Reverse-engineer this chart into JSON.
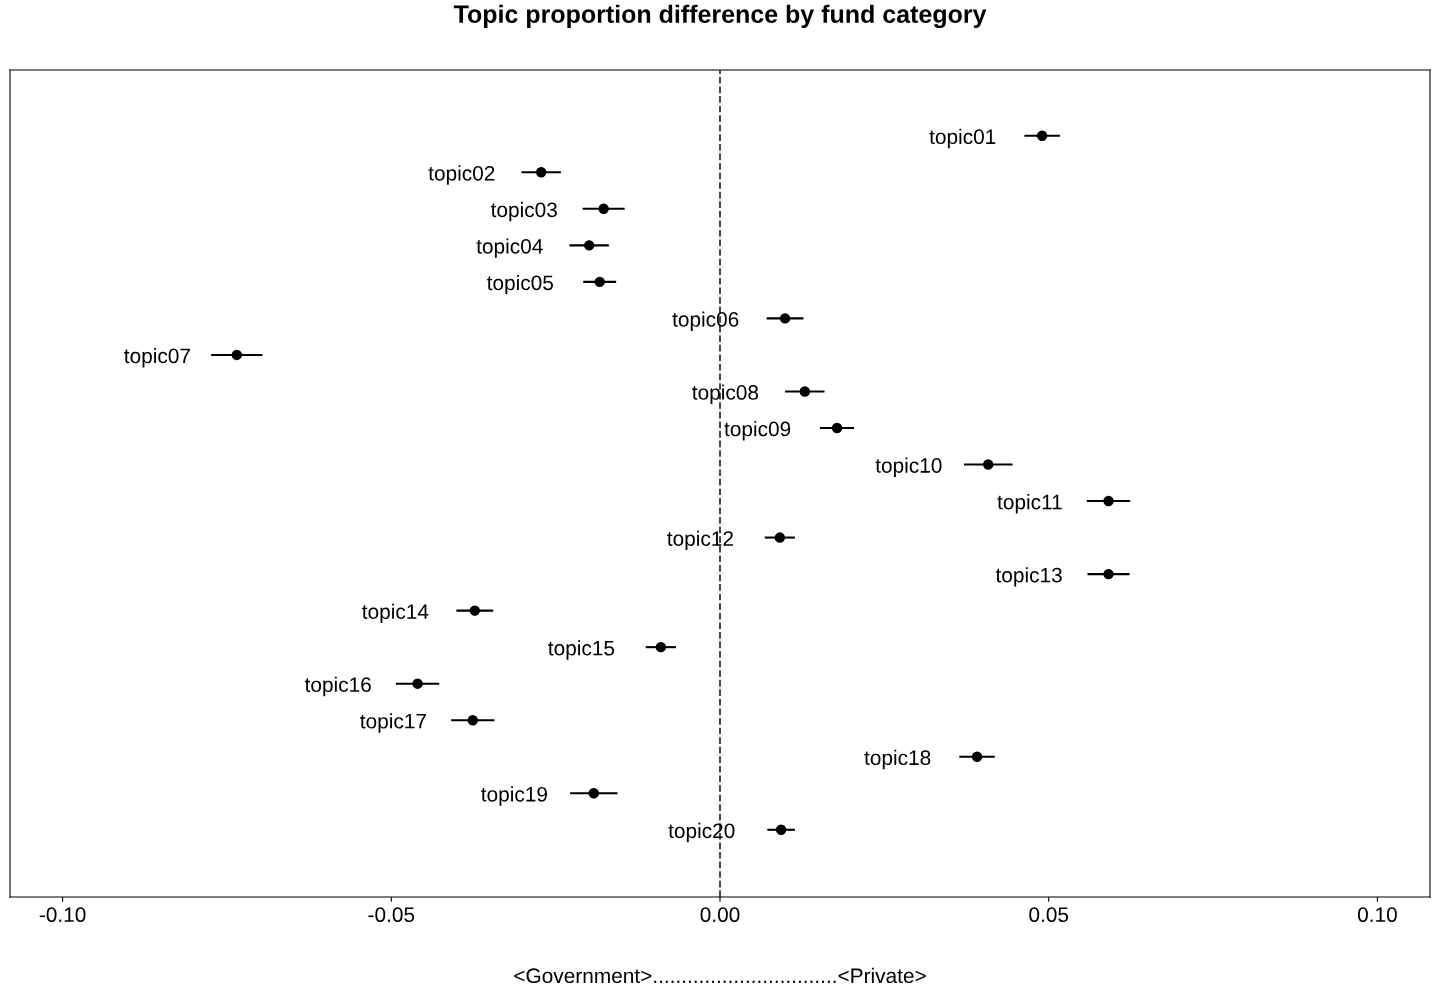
{
  "chart_data": {
    "type": "scatter",
    "orientation": "horizontal",
    "title": "Topic proportion difference by fund category",
    "xlabel": "<Government>................................<Private>",
    "categories": [
      "topic01",
      "topic02",
      "topic03",
      "topic04",
      "topic05",
      "topic06",
      "topic07",
      "topic08",
      "topic09",
      "topic10",
      "topic11",
      "topic12",
      "topic13",
      "topic14",
      "topic15",
      "topic16",
      "topic17",
      "topic18",
      "topic19",
      "topic20"
    ],
    "values": [
      0.049,
      -0.0272,
      -0.0177,
      -0.0199,
      -0.0183,
      0.0099,
      -0.0735,
      0.0129,
      0.0178,
      0.0408,
      0.0591,
      0.0091,
      0.0591,
      -0.0373,
      -0.009,
      -0.046,
      -0.0376,
      0.0391,
      -0.0192,
      0.0093
    ],
    "errors": [
      0.0027,
      0.003,
      0.0032,
      0.003,
      0.0025,
      0.0028,
      0.0039,
      0.003,
      0.0026,
      0.0037,
      0.0033,
      0.0023,
      0.0032,
      0.0028,
      0.0023,
      0.0033,
      0.0033,
      0.0027,
      0.0036,
      0.0021
    ],
    "color": "#000000",
    "marker": "circle",
    "xlim": [
      -0.108,
      0.108
    ],
    "xticks": [
      {
        "value": -0.1,
        "label": "-0.10"
      },
      {
        "value": -0.05,
        "label": "-0.05"
      },
      {
        "value": 0,
        "label": "0.00"
      },
      {
        "value": 0.05,
        "label": "0.05"
      },
      {
        "value": 0.1,
        "label": "0.10"
      }
    ],
    "ref_lines": [
      {
        "axis": "x",
        "value": 0,
        "line_style": "dashed",
        "color": "#333333"
      }
    ],
    "tick_labels": "x",
    "grid": false,
    "legend": false
  }
}
